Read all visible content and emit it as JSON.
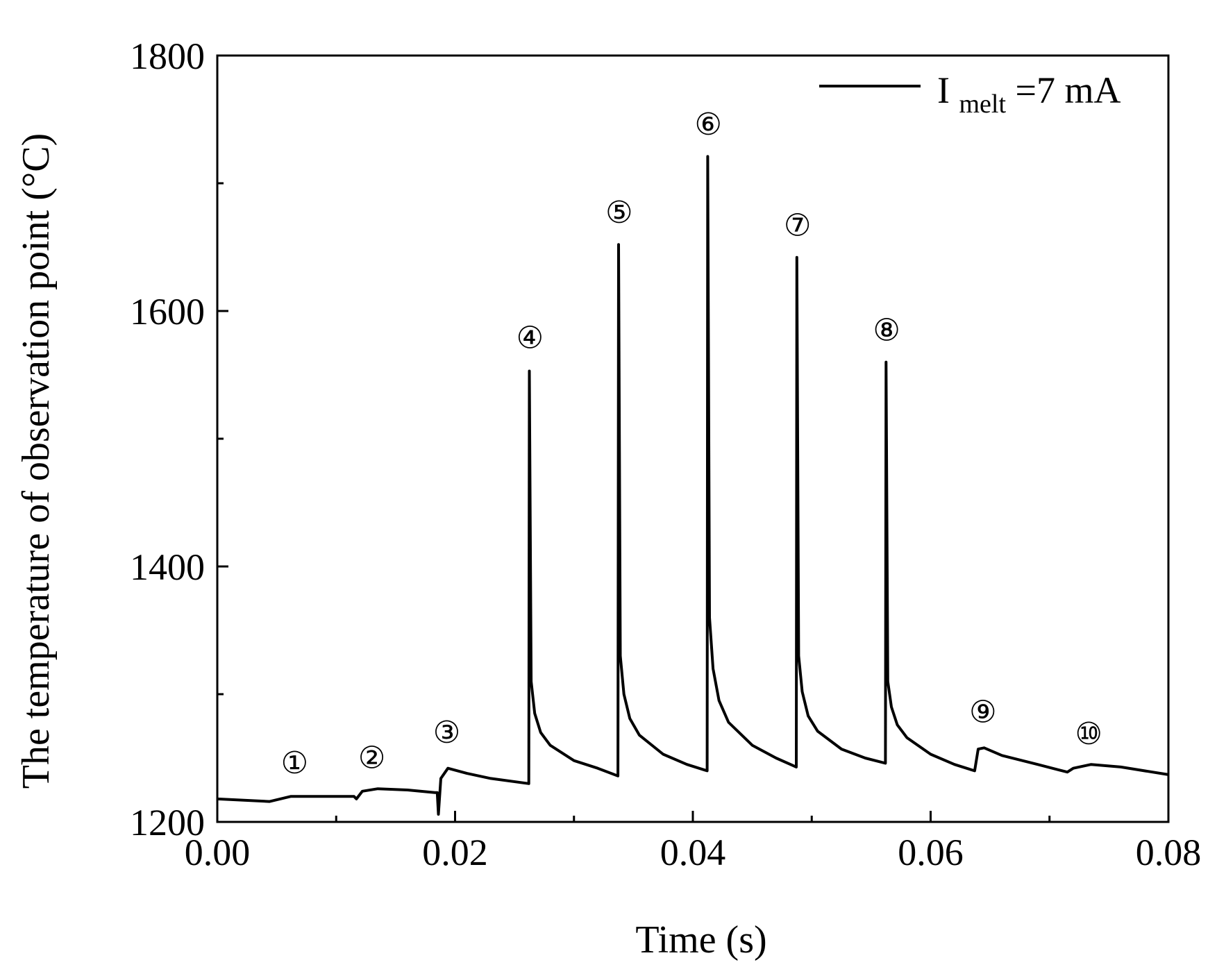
{
  "chart_data": {
    "type": "line",
    "title": "",
    "xlabel": "Time (s)",
    "ylabel": "The temperature of observation point (°C)",
    "xlim": [
      0.0,
      0.08
    ],
    "ylim": [
      1200,
      1800
    ],
    "xticks": [
      0.0,
      0.02,
      0.04,
      0.06,
      0.08
    ],
    "xtick_labels": [
      "0.00",
      "0.02",
      "0.04",
      "0.06",
      "0.08"
    ],
    "xminor": [
      0.01,
      0.03,
      0.05,
      0.07
    ],
    "yticks": [
      1200,
      1400,
      1600,
      1800
    ],
    "ytick_labels": [
      "1200",
      "1400",
      "1600",
      "1800"
    ],
    "yminor": [
      1300,
      1500,
      1700
    ],
    "grid": false,
    "legend": {
      "position": "top-right",
      "label_main": "I",
      "label_sub": "melt",
      "label_rest": "=7 mA"
    },
    "series": [
      {
        "name": "Imelt=7 mA",
        "color": "#000000",
        "x": [
          0.0,
          0.0044,
          0.0062,
          0.009,
          0.0115,
          0.0117,
          0.0122,
          0.0135,
          0.016,
          0.0183,
          0.0185,
          0.0186,
          0.0188,
          0.0194,
          0.021,
          0.023,
          0.0262,
          0.02625,
          0.0264,
          0.0267,
          0.0272,
          0.028,
          0.03,
          0.032,
          0.0337,
          0.03375,
          0.0339,
          0.0342,
          0.0347,
          0.0355,
          0.0375,
          0.0395,
          0.0412,
          0.04125,
          0.0414,
          0.0417,
          0.0422,
          0.043,
          0.045,
          0.047,
          0.0487,
          0.04875,
          0.0489,
          0.0492,
          0.0497,
          0.0505,
          0.0525,
          0.0545,
          0.0562,
          0.05625,
          0.0564,
          0.0567,
          0.0572,
          0.058,
          0.06,
          0.062,
          0.0637,
          0.064,
          0.0645,
          0.066,
          0.069,
          0.0715,
          0.072,
          0.0735,
          0.076,
          0.08
        ],
        "y": [
          1218,
          1216,
          1220,
          1220,
          1220,
          1218,
          1224,
          1226,
          1225,
          1223,
          1223,
          1206,
          1234,
          1242,
          1238,
          1234,
          1230,
          1553,
          1310,
          1285,
          1270,
          1260,
          1248,
          1242,
          1236,
          1652,
          1330,
          1300,
          1281,
          1268,
          1253,
          1245,
          1240,
          1721,
          1360,
          1320,
          1295,
          1278,
          1260,
          1250,
          1243,
          1642,
          1330,
          1302,
          1283,
          1271,
          1257,
          1250,
          1246,
          1560,
          1310,
          1290,
          1276,
          1266,
          1253,
          1245,
          1240,
          1257,
          1258,
          1252,
          1245,
          1239,
          1242,
          1245,
          1243,
          1237
        ]
      }
    ],
    "annotations": [
      {
        "label": "①",
        "x": 0.0065,
        "y": 1238
      },
      {
        "label": "②",
        "x": 0.013,
        "y": 1242
      },
      {
        "label": "③",
        "x": 0.0193,
        "y": 1262
      },
      {
        "label": "④",
        "x": 0.0263,
        "y": 1571
      },
      {
        "label": "⑤",
        "x": 0.0338,
        "y": 1669
      },
      {
        "label": "⑥",
        "x": 0.0413,
        "y": 1738
      },
      {
        "label": "⑦",
        "x": 0.0488,
        "y": 1659
      },
      {
        "label": "⑧",
        "x": 0.0563,
        "y": 1577
      },
      {
        "label": "⑨",
        "x": 0.0644,
        "y": 1278
      },
      {
        "label": "⑩",
        "x": 0.0733,
        "y": 1261
      }
    ]
  }
}
